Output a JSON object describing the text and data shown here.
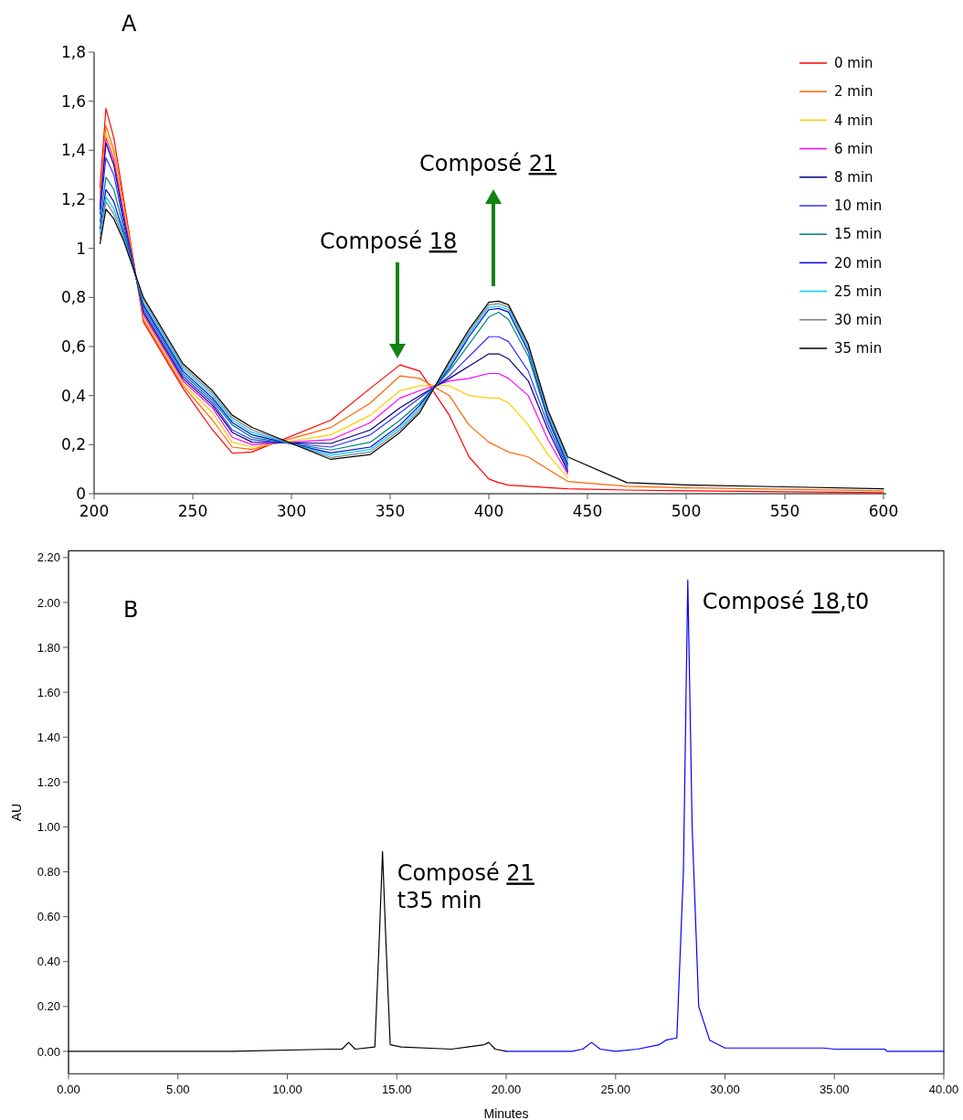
{
  "chart_data": [
    {
      "type": "line",
      "x": [
        203,
        206,
        210,
        215,
        225,
        245,
        260,
        270,
        280,
        320,
        340,
        355,
        365,
        380,
        390,
        400,
        405,
        410,
        420,
        430,
        440,
        470,
        500,
        550,
        600
      ],
      "xlim": [
        200,
        600
      ],
      "xticks": [
        200,
        250,
        300,
        350,
        400,
        450,
        500,
        550,
        600
      ],
      "ylim": [
        0,
        1.8
      ],
      "yticks": [
        0,
        {
          "value": 0.2,
          "label": "0,2"
        },
        {
          "value": 0.4,
          "label": "0,4"
        },
        {
          "value": 0.6,
          "label": "0,6"
        },
        {
          "value": 0.8,
          "label": "0,8"
        },
        1,
        {
          "value": 1.2,
          "label": "1,2"
        },
        {
          "value": 1.4,
          "label": "1,4"
        },
        {
          "value": 1.6,
          "label": "1,6"
        },
        {
          "value": 1.8,
          "label": "1,8"
        }
      ],
      "legend": "top right",
      "line_style": "solid",
      "marker": "none",
      "annotations": [
        "A",
        "Composé 18",
        "Composé 21"
      ],
      "series": [
        {
          "name": "0 min",
          "color": "#ff0000",
          "values": [
            1.25,
            1.57,
            1.45,
            1.2,
            0.7,
            0.43,
            0.26,
            0.165,
            0.17,
            0.3,
            0.43,
            0.525,
            0.5,
            0.32,
            0.15,
            0.06,
            0.045,
            0.035,
            0.03,
            0.025,
            0.02,
            0.015,
            0.012,
            0.008,
            0.004
          ]
        },
        {
          "name": "2 min",
          "color": "#ff6600",
          "values": [
            1.22,
            1.5,
            1.4,
            1.18,
            0.71,
            0.44,
            0.3,
            0.19,
            0.18,
            0.27,
            0.37,
            0.48,
            0.47,
            0.4,
            0.28,
            0.21,
            0.19,
            0.17,
            0.15,
            0.1,
            0.05,
            0.03,
            0.024,
            0.018,
            0.012
          ]
        },
        {
          "name": "4 min",
          "color": "#ffcc00",
          "values": [
            1.2,
            1.47,
            1.38,
            1.16,
            0.72,
            0.45,
            0.33,
            0.21,
            0.19,
            0.24,
            0.32,
            0.42,
            0.44,
            0.44,
            0.4,
            0.39,
            0.39,
            0.37,
            0.28,
            0.16,
            0.065,
            null,
            null,
            null,
            null
          ]
        },
        {
          "name": "6 min",
          "color": "#ff00ff",
          "values": [
            1.18,
            1.45,
            1.36,
            1.14,
            0.73,
            0.46,
            0.35,
            0.23,
            0.2,
            0.22,
            0.29,
            0.39,
            0.42,
            0.46,
            0.47,
            0.49,
            0.49,
            0.47,
            0.4,
            0.22,
            0.08,
            null,
            null,
            null,
            null
          ]
        },
        {
          "name": "8 min",
          "color": "#000080",
          "values": [
            1.16,
            1.43,
            1.34,
            1.12,
            0.74,
            0.47,
            0.36,
            0.25,
            0.21,
            0.205,
            0.26,
            0.35,
            0.4,
            0.47,
            0.52,
            0.57,
            0.57,
            0.55,
            0.46,
            0.26,
            0.09,
            null,
            null,
            null,
            null
          ]
        },
        {
          "name": "10 min",
          "color": "#3333ff",
          "values": [
            1.14,
            1.37,
            1.3,
            1.1,
            0.75,
            0.48,
            0.37,
            0.26,
            0.22,
            0.19,
            0.24,
            0.33,
            0.39,
            0.48,
            0.56,
            0.64,
            0.64,
            0.62,
            0.5,
            0.28,
            0.1,
            null,
            null,
            null,
            null
          ]
        },
        {
          "name": "15 min",
          "color": "#008080",
          "values": [
            1.11,
            1.29,
            1.24,
            1.08,
            0.76,
            0.49,
            0.38,
            0.28,
            0.23,
            0.178,
            0.21,
            0.3,
            0.37,
            0.5,
            0.61,
            0.72,
            0.74,
            0.71,
            0.56,
            0.3,
            0.11,
            null,
            null,
            null,
            null
          ]
        },
        {
          "name": "20 min",
          "color": "#0000dd",
          "values": [
            1.08,
            1.24,
            1.19,
            1.06,
            0.77,
            0.5,
            0.39,
            0.29,
            0.24,
            0.166,
            0.19,
            0.28,
            0.36,
            0.51,
            0.64,
            0.75,
            0.755,
            0.74,
            0.58,
            0.31,
            0.12,
            null,
            null,
            null,
            null
          ]
        },
        {
          "name": "25 min",
          "color": "#00ccff",
          "values": [
            1.06,
            1.21,
            1.16,
            1.05,
            0.78,
            0.51,
            0.4,
            0.3,
            0.25,
            0.157,
            0.18,
            0.27,
            0.35,
            0.52,
            0.65,
            0.76,
            0.765,
            0.75,
            0.59,
            0.32,
            0.13,
            null,
            null,
            null,
            null
          ]
        },
        {
          "name": "30 min",
          "color": "#808080",
          "values": [
            1.04,
            1.19,
            1.14,
            1.04,
            0.79,
            0.52,
            0.41,
            0.31,
            0.26,
            0.148,
            0.17,
            0.26,
            0.34,
            0.53,
            0.66,
            0.77,
            0.775,
            0.76,
            0.6,
            0.33,
            0.14,
            null,
            null,
            null,
            null
          ]
        },
        {
          "name": "35 min",
          "color": "#000000",
          "values": [
            1.02,
            1.16,
            1.12,
            1.03,
            0.8,
            0.53,
            0.42,
            0.32,
            0.27,
            0.14,
            0.16,
            0.25,
            0.33,
            0.54,
            0.67,
            0.78,
            0.785,
            0.77,
            0.61,
            0.34,
            0.15,
            0.045,
            0.036,
            0.028,
            0.02
          ]
        }
      ]
    },
    {
      "type": "line",
      "xlabel": "Minutes",
      "ylabel": "AU",
      "xlim": [
        0,
        40
      ],
      "xticks": [
        {
          "value": 0,
          "label": "0.00"
        },
        {
          "value": 5,
          "label": "5.00"
        },
        {
          "value": 10,
          "label": "10.00"
        },
        {
          "value": 15,
          "label": "15.00"
        },
        {
          "value": 20,
          "label": "20.00"
        },
        {
          "value": 25,
          "label": "25.00"
        },
        {
          "value": 30,
          "label": "30.00"
        },
        {
          "value": 35,
          "label": "35.00"
        },
        {
          "value": 40,
          "label": "40.00"
        }
      ],
      "ylim": [
        -0.1,
        2.23
      ],
      "yticks": [
        {
          "value": 0,
          "label": "0.00"
        },
        {
          "value": 0.2,
          "label": "0.20"
        },
        {
          "value": 0.4,
          "label": "0.40"
        },
        {
          "value": 0.6,
          "label": "0.60"
        },
        {
          "value": 0.8,
          "label": "0.80"
        },
        {
          "value": 1,
          "label": "1.00"
        },
        {
          "value": 1.2,
          "label": "1.20"
        },
        {
          "value": 1.4,
          "label": "1.40"
        },
        {
          "value": 1.6,
          "label": "1.60"
        },
        {
          "value": 1.8,
          "label": "1.80"
        },
        {
          "value": 2,
          "label": "2.00"
        },
        {
          "value": 2.2,
          "label": "2.20"
        }
      ],
      "line_style": "solid",
      "marker": "none",
      "annotations": [
        "B",
        {
          "text": "Composé 21\nt35 min",
          "x": 14.35,
          "y": 0.89
        },
        {
          "text": "Composé 18,t0",
          "x": 28.3,
          "y": 2.1
        }
      ],
      "series": [
        {
          "color": "#000000",
          "x": [
            0,
            7.3,
            12,
            12.5,
            12.8,
            13.1,
            14,
            14.2,
            14.35,
            14.5,
            14.7,
            15.2,
            17.5,
            19,
            19.2,
            19.5,
            20
          ],
          "values": [
            0,
            0,
            0.01,
            0.01,
            0.04,
            0.01,
            0.02,
            0.5,
            0.89,
            0.5,
            0.03,
            0.02,
            0.01,
            0.03,
            0.04,
            0.01,
            0
          ]
        },
        {
          "color": "#0000ff",
          "x": [
            20,
            23,
            23.5,
            23.9,
            24.3,
            25,
            26,
            27,
            27.3,
            27.8,
            28.1,
            28.3,
            28.5,
            28.8,
            29.3,
            30,
            34.5,
            35,
            37.3,
            37.4,
            40
          ],
          "values": [
            0,
            0,
            0.01,
            0.04,
            0.01,
            0,
            0.01,
            0.03,
            0.05,
            0.06,
            0.8,
            2.1,
            1.0,
            0.2,
            0.05,
            0.015,
            0.015,
            0.01,
            0.01,
            0,
            0
          ]
        }
      ]
    }
  ]
}
